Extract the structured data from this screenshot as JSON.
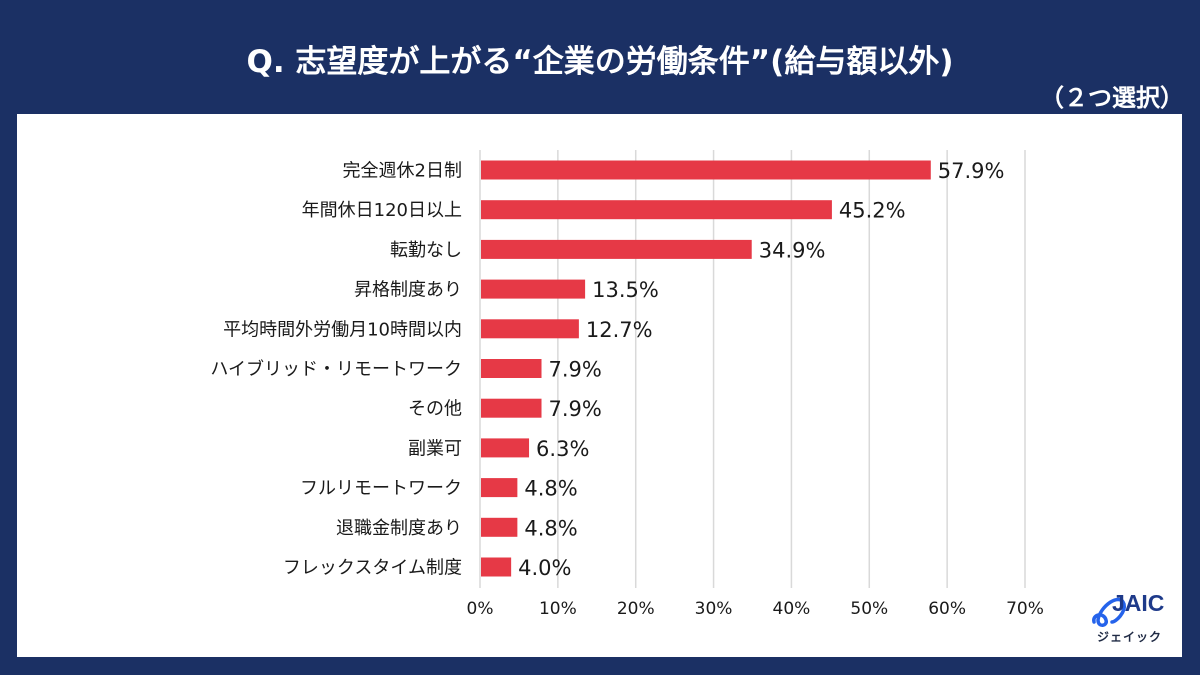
{
  "header": {
    "title": "Q. 志望度が上がる“企業の労働条件”(給与額以外)",
    "subtitle": "（２つ選択）"
  },
  "logo": {
    "name": "JAIC",
    "kana": "ジェイック"
  },
  "colors": {
    "background": "#1b3064",
    "bar": "#e63946",
    "grid": "#d9d9d9"
  },
  "chart_data": {
    "type": "bar",
    "orientation": "horizontal",
    "title": "Q. 志望度が上がる“企業の労働条件”(給与額以外)",
    "subtitle": "（２つ選択）",
    "categories": [
      "完全週休2日制",
      "年間休日120日以上",
      "転勤なし",
      "昇格制度あり",
      "平均時間外労働月10時間以内",
      "ハイブリッド・リモートワーク",
      "その他",
      "副業可",
      "フルリモートワーク",
      "退職金制度あり",
      "フレックスタイム制度"
    ],
    "values": [
      57.9,
      45.2,
      34.9,
      13.5,
      12.7,
      7.9,
      7.9,
      6.3,
      4.8,
      4.8,
      4.0
    ],
    "value_labels": [
      "57.9%",
      "45.2%",
      "34.9%",
      "13.5%",
      "12.7%",
      "7.9%",
      "7.9%",
      "6.3%",
      "4.8%",
      "4.8%",
      "4.0%"
    ],
    "xlabel": "",
    "ylabel": "",
    "xlim": [
      0,
      70
    ],
    "x_ticks": [
      0,
      10,
      20,
      30,
      40,
      50,
      60,
      70
    ],
    "x_tick_labels": [
      "0%",
      "10%",
      "20%",
      "30%",
      "40%",
      "50%",
      "60%",
      "70%"
    ],
    "grid": true,
    "legend": "none"
  }
}
